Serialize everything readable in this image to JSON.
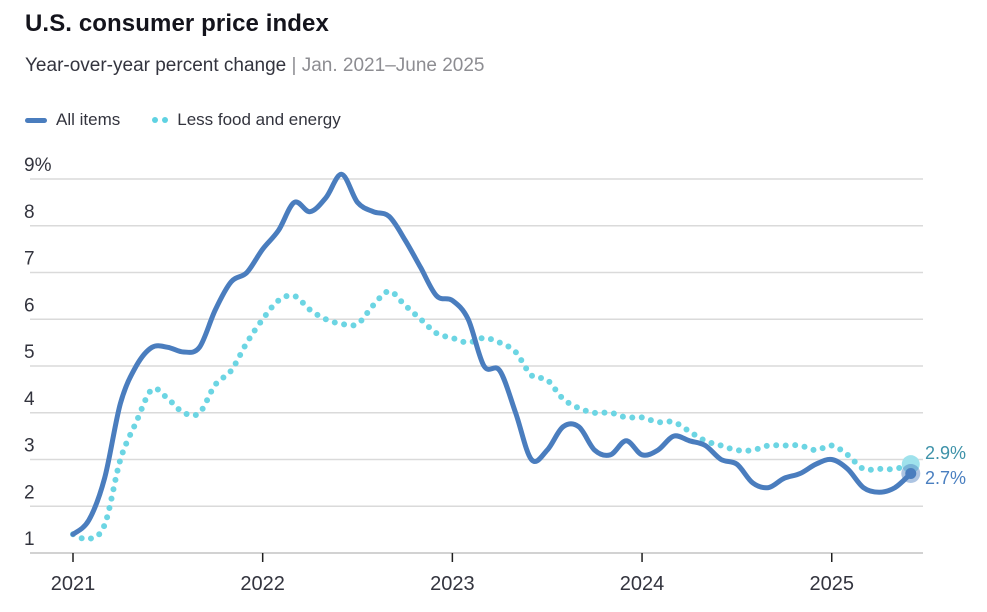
{
  "header": {
    "title": "U.S. consumer price index",
    "subtitle": "Year-over-year percent change",
    "subtitle_range": "| Jan. 2021–June 2025"
  },
  "legend": {
    "items": [
      {
        "label": "All items",
        "swatch": "solid-line",
        "color": "#4a7dbe"
      },
      {
        "label": "Less food and energy",
        "swatch": "dotted-line",
        "color": "#5fd2e2"
      }
    ]
  },
  "chart_data": {
    "type": "line",
    "title": "U.S. consumer price index",
    "subtitle": "Year-over-year percent change | Jan. 2021–June 2025",
    "x_unit": "month",
    "x_start": "Jan. 2021",
    "x_end": "June 2025",
    "x_tick_labels": [
      "2021",
      "2022",
      "2023",
      "2024",
      "2025"
    ],
    "months_per_tick": 12,
    "y_ticks": [
      1,
      2,
      3,
      4,
      5,
      6,
      7,
      8,
      9
    ],
    "y_tick_labels": [
      "1",
      "2",
      "3",
      "4",
      "5",
      "6",
      "7",
      "8",
      "9%"
    ],
    "ylim": [
      1,
      9
    ],
    "grid": "horizontal",
    "legend_position": "top-left",
    "series": [
      {
        "name": "All items",
        "style": "solid",
        "color": "#4a7dbe",
        "end_label": "2.7%",
        "end_label_color": "#4a7fc0",
        "end_dot_color": "#4a7dbe",
        "values": [
          1.4,
          1.7,
          2.6,
          4.2,
          5.0,
          5.4,
          5.4,
          5.3,
          5.4,
          6.2,
          6.8,
          7.0,
          7.5,
          7.9,
          8.5,
          8.3,
          8.6,
          9.1,
          8.5,
          8.3,
          8.2,
          7.7,
          7.1,
          6.5,
          6.4,
          6.0,
          5.0,
          4.9,
          4.0,
          3.0,
          3.2,
          3.7,
          3.7,
          3.2,
          3.1,
          3.4,
          3.1,
          3.2,
          3.5,
          3.4,
          3.3,
          3.0,
          2.9,
          2.5,
          2.4,
          2.6,
          2.7,
          2.9,
          3.0,
          2.8,
          2.4,
          2.3,
          2.4,
          2.7
        ]
      },
      {
        "name": "Less food and energy",
        "style": "dotted",
        "color": "#6cd5e3",
        "end_label": "2.9%",
        "end_label_color": "#3e92a9",
        "end_dot_color": "#9fe2ec",
        "values": [
          1.4,
          1.3,
          1.6,
          3.0,
          3.8,
          4.5,
          4.3,
          4.0,
          4.0,
          4.6,
          4.9,
          5.5,
          6.0,
          6.4,
          6.5,
          6.2,
          6.0,
          5.9,
          5.9,
          6.3,
          6.6,
          6.3,
          6.0,
          5.7,
          5.6,
          5.5,
          5.6,
          5.5,
          5.3,
          4.8,
          4.7,
          4.3,
          4.1,
          4.0,
          4.0,
          3.9,
          3.9,
          3.8,
          3.8,
          3.6,
          3.4,
          3.3,
          3.2,
          3.2,
          3.3,
          3.3,
          3.3,
          3.2,
          3.3,
          3.1,
          2.8,
          2.8,
          2.8,
          2.9
        ]
      }
    ]
  },
  "colors": {
    "title_text": "#14141c",
    "body_text": "#33343e",
    "subtitle_gray": "#8d8d92",
    "gridline": "#dadada",
    "axis_line": "#c4c4c4",
    "tick_mark": "#1f1f1f"
  }
}
